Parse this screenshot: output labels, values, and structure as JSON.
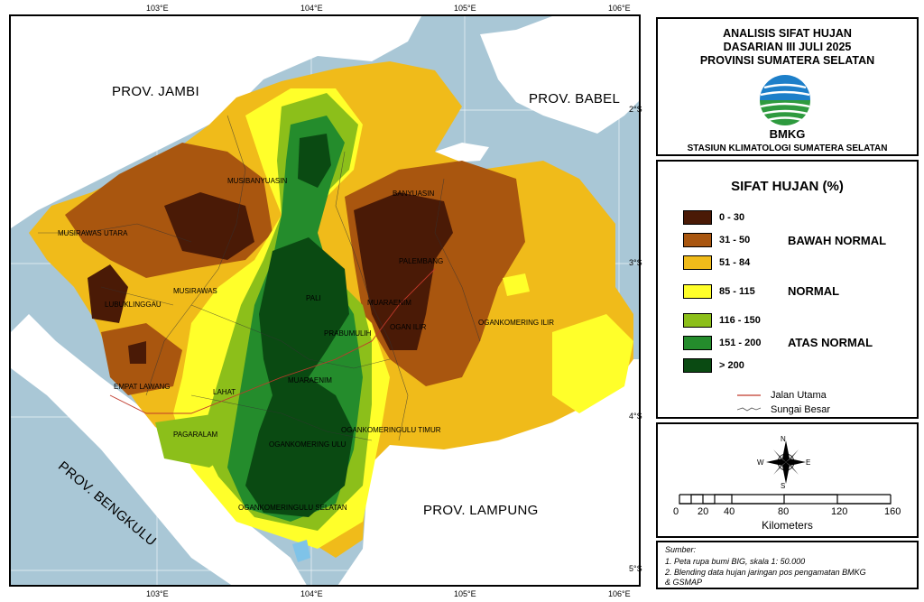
{
  "map": {
    "lat_ticks": [
      "2°S",
      "3°S",
      "4°S",
      "5°S"
    ],
    "lon_ticks": [
      "103°E",
      "104°E",
      "105°E",
      "106°E"
    ],
    "provinces": {
      "jambi": "PROV. JAMBI",
      "babel": "PROV. BABEL",
      "bengkulu": "PROV. BENGKULU",
      "lampung": "PROV. LAMPUNG"
    },
    "regencies": [
      "MUSIBANYUASIN",
      "BANYUASIN",
      "MUSIRAWAS UTARA",
      "PALEMBANG",
      "MUSIRAWAS",
      "LUBUKLINGGAU",
      "PALI",
      "MUARAENIM",
      "OGAN ILIR",
      "OGANKOMERING ILIR",
      "PRABUMULIH",
      "EMPAT LAWANG",
      "LAHAT",
      "MUARAENIM",
      "OGANKOMERINGULU TIMUR",
      "PAGARALAM",
      "OGANKOMERING ULU",
      "OGANKOMERINGULU SELATAN"
    ]
  },
  "title": {
    "line1": "ANALISIS SIFAT HUJAN",
    "line2": "DASARIAN III JULI 2025",
    "line3": "PROVINSI SUMATERA SELATAN",
    "logo_text": "BMKG",
    "station": "STASIUN KLIMATOLOGI SUMATERA SELATAN"
  },
  "legend": {
    "heading": "SIFAT HUJAN (%)",
    "classes": [
      {
        "range": "0 - 30",
        "color": "#4a1a06"
      },
      {
        "range": "31 - 50",
        "color": "#a9560f"
      },
      {
        "range": "51 - 84",
        "color": "#f0bb1a"
      },
      {
        "range": "85 - 115",
        "color": "#ffff2a"
      },
      {
        "range": "116 - 150",
        "color": "#8cbf1a"
      },
      {
        "range": "151 - 200",
        "color": "#248c2c"
      },
      {
        "range": "> 200",
        "color": "#0a4a12"
      }
    ],
    "category_below": "BAWAH NORMAL",
    "category_normal": "NORMAL",
    "category_above": "ATAS NORMAL",
    "road_label": "Jalan Utama",
    "river_label": "Sungai Besar"
  },
  "compass": {
    "n": "N",
    "s": "S",
    "e": "E",
    "w": "W"
  },
  "scalebar": {
    "ticks": [
      "0",
      "20",
      "40",
      "80",
      "120",
      "160"
    ],
    "unit": "Kilometers"
  },
  "source": {
    "heading": "Sumber:",
    "line1": "1. Peta rupa bumi BIG, skala 1: 50.000",
    "line2": "2. Blending data hujan jaringan pos pengamatan BMKG",
    "line3": "& GSMAP"
  }
}
